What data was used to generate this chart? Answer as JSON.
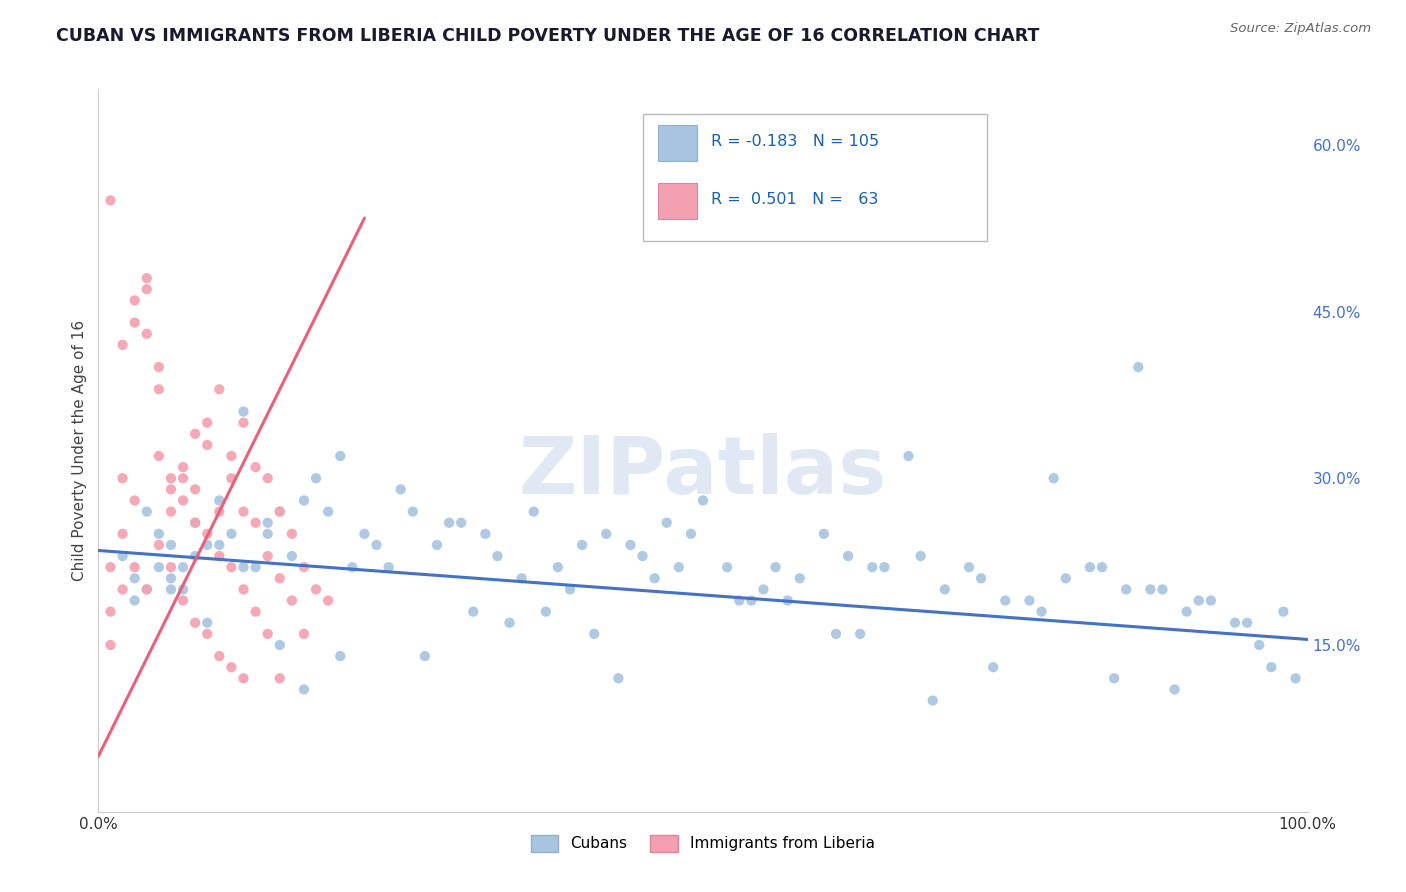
{
  "title": "CUBAN VS IMMIGRANTS FROM LIBERIA CHILD POVERTY UNDER THE AGE OF 16 CORRELATION CHART",
  "source": "Source: ZipAtlas.com",
  "ylabel": "Child Poverty Under the Age of 16",
  "xlim": [
    0.0,
    1.0
  ],
  "ylim": [
    0.0,
    0.65
  ],
  "ytick_labels_right": [
    "60.0%",
    "45.0%",
    "30.0%",
    "15.0%"
  ],
  "ytick_vals_right": [
    0.6,
    0.45,
    0.3,
    0.15
  ],
  "legend_R_cubans": "-0.183",
  "legend_N_cubans": "105",
  "legend_R_liberia": "0.501",
  "legend_N_liberia": "63",
  "cubans_color": "#a8c4e0",
  "liberia_color": "#f4a0b0",
  "trendline_cubans_color": "#4472c4",
  "trendline_liberia_color": "#e8607a",
  "background_color": "#ffffff",
  "grid_color": "#cccccc",
  "title_color": "#1a1a2e",
  "source_color": "#666666",
  "cubans_scatter_x": [
    0.02,
    0.03,
    0.04,
    0.03,
    0.05,
    0.05,
    0.06,
    0.04,
    0.07,
    0.08,
    0.06,
    0.09,
    0.1,
    0.08,
    0.11,
    0.07,
    0.12,
    0.13,
    0.1,
    0.14,
    0.15,
    0.12,
    0.16,
    0.18,
    0.14,
    0.2,
    0.17,
    0.22,
    0.19,
    0.25,
    0.23,
    0.28,
    0.21,
    0.3,
    0.26,
    0.33,
    0.24,
    0.35,
    0.32,
    0.38,
    0.29,
    0.4,
    0.36,
    0.42,
    0.45,
    0.39,
    0.48,
    0.44,
    0.5,
    0.47,
    0.52,
    0.55,
    0.49,
    0.58,
    0.53,
    0.6,
    0.56,
    0.62,
    0.65,
    0.68,
    0.7,
    0.64,
    0.72,
    0.75,
    0.67,
    0.78,
    0.73,
    0.8,
    0.77,
    0.82,
    0.85,
    0.79,
    0.88,
    0.83,
    0.9,
    0.87,
    0.92,
    0.86,
    0.95,
    0.91,
    0.97,
    0.94,
    0.98,
    0.96,
    0.99,
    0.61,
    0.41,
    0.31,
    0.09,
    0.57,
    0.37,
    0.27,
    0.17,
    0.43,
    0.69,
    0.74,
    0.84,
    0.89,
    0.06,
    0.15,
    0.2,
    0.34,
    0.46,
    0.54,
    0.63
  ],
  "cubans_scatter_y": [
    0.23,
    0.21,
    0.27,
    0.19,
    0.25,
    0.22,
    0.24,
    0.2,
    0.22,
    0.26,
    0.21,
    0.24,
    0.28,
    0.23,
    0.25,
    0.2,
    0.36,
    0.22,
    0.24,
    0.25,
    0.27,
    0.22,
    0.23,
    0.3,
    0.26,
    0.32,
    0.28,
    0.25,
    0.27,
    0.29,
    0.24,
    0.24,
    0.22,
    0.26,
    0.27,
    0.23,
    0.22,
    0.21,
    0.25,
    0.22,
    0.26,
    0.24,
    0.27,
    0.25,
    0.23,
    0.2,
    0.22,
    0.24,
    0.28,
    0.26,
    0.22,
    0.2,
    0.25,
    0.21,
    0.19,
    0.25,
    0.22,
    0.23,
    0.22,
    0.23,
    0.2,
    0.22,
    0.22,
    0.19,
    0.32,
    0.18,
    0.21,
    0.21,
    0.19,
    0.22,
    0.2,
    0.3,
    0.2,
    0.22,
    0.18,
    0.2,
    0.19,
    0.4,
    0.17,
    0.19,
    0.13,
    0.17,
    0.18,
    0.15,
    0.12,
    0.16,
    0.16,
    0.18,
    0.17,
    0.19,
    0.18,
    0.14,
    0.11,
    0.12,
    0.1,
    0.13,
    0.12,
    0.11,
    0.2,
    0.15,
    0.14,
    0.17,
    0.21,
    0.19,
    0.16
  ],
  "liberia_scatter_x": [
    0.01,
    0.02,
    0.01,
    0.03,
    0.02,
    0.01,
    0.04,
    0.03,
    0.02,
    0.01,
    0.05,
    0.04,
    0.03,
    0.06,
    0.02,
    0.05,
    0.04,
    0.07,
    0.06,
    0.03,
    0.08,
    0.07,
    0.05,
    0.09,
    0.08,
    0.06,
    0.04,
    0.1,
    0.09,
    0.07,
    0.05,
    0.11,
    0.1,
    0.08,
    0.06,
    0.12,
    0.11,
    0.09,
    0.07,
    0.13,
    0.12,
    0.1,
    0.08,
    0.14,
    0.13,
    0.11,
    0.09,
    0.15,
    0.14,
    0.12,
    0.1,
    0.16,
    0.15,
    0.13,
    0.11,
    0.17,
    0.16,
    0.14,
    0.12,
    0.18,
    0.17,
    0.15,
    0.19
  ],
  "liberia_scatter_y": [
    0.22,
    0.2,
    0.55,
    0.46,
    0.42,
    0.18,
    0.47,
    0.44,
    0.3,
    0.15,
    0.32,
    0.48,
    0.28,
    0.29,
    0.25,
    0.4,
    0.43,
    0.28,
    0.3,
    0.22,
    0.34,
    0.31,
    0.38,
    0.33,
    0.29,
    0.27,
    0.2,
    0.38,
    0.35,
    0.3,
    0.24,
    0.32,
    0.27,
    0.26,
    0.22,
    0.35,
    0.3,
    0.25,
    0.19,
    0.31,
    0.27,
    0.23,
    0.17,
    0.3,
    0.26,
    0.22,
    0.16,
    0.27,
    0.23,
    0.2,
    0.14,
    0.25,
    0.21,
    0.18,
    0.13,
    0.22,
    0.19,
    0.16,
    0.12,
    0.2,
    0.16,
    0.12,
    0.19
  ],
  "liberia_trend_start_x": 0.0,
  "liberia_trend_end_x": 0.22,
  "cubans_trend_start_x": 0.0,
  "cubans_trend_end_x": 1.0
}
